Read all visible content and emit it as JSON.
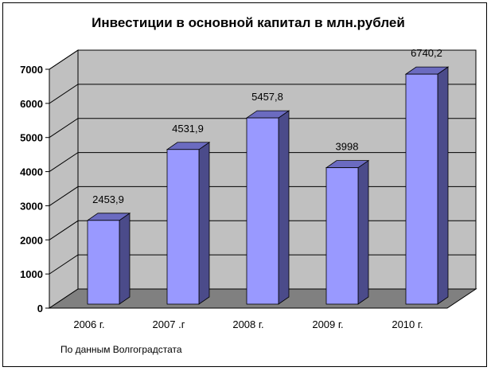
{
  "chart_data": {
    "type": "bar",
    "title": "Инвестиции в основной капитал в млн.рублей",
    "categories": [
      "2006 г.",
      "2007 .г",
      "2008 г.",
      "2009 г.",
      "2010 г."
    ],
    "values": [
      2453.9,
      4531.9,
      5457.8,
      3998,
      6740.2
    ],
    "data_labels": [
      "2453,9",
      "4531,9",
      "5457,8",
      "3998",
      "6740,2"
    ],
    "y_ticks": [
      0,
      1000,
      2000,
      3000,
      4000,
      5000,
      6000,
      7000
    ],
    "ylim": [
      0,
      7000
    ],
    "grid": true,
    "style": "3d-column",
    "colors": {
      "bar_front": "#9999ff",
      "bar_side": "#4b4b8a",
      "bar_top": "#6b6bc0",
      "wall": "#c0c0c0",
      "floor": "#808080"
    }
  },
  "footnote": "По данным Волгоградстата"
}
